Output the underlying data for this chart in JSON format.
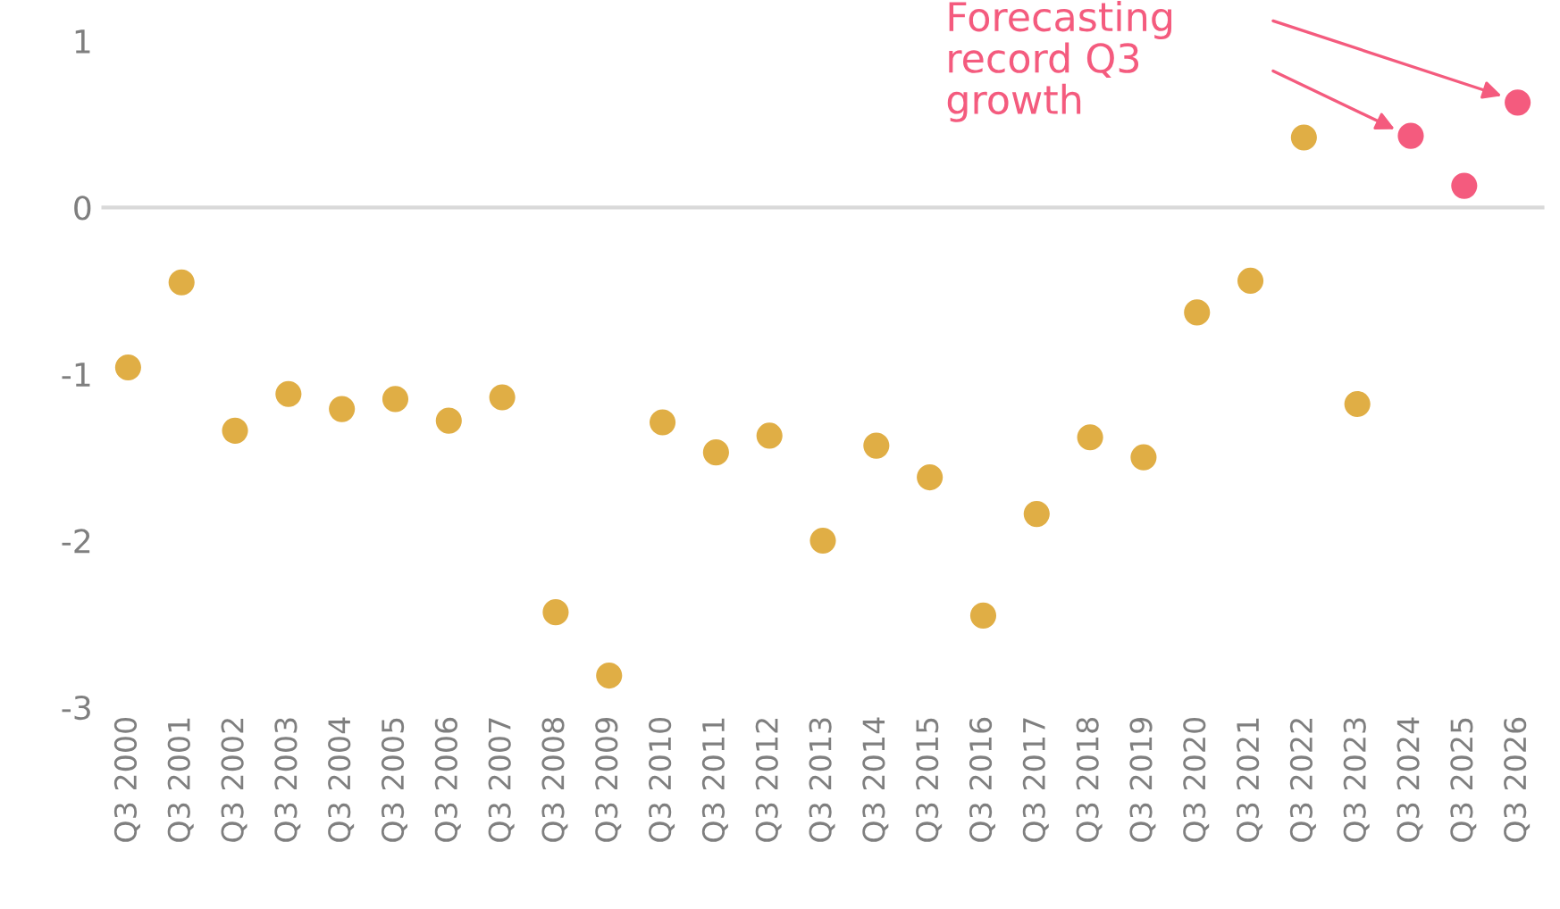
{
  "chart_data": {
    "type": "scatter",
    "categories": [
      "Q3 2000",
      "Q3 2001",
      "Q3 2002",
      "Q3 2003",
      "Q3 2004",
      "Q3 2005",
      "Q3 2006",
      "Q3 2007",
      "Q3 2008",
      "Q3 2009",
      "Q3 2010",
      "Q3 2011",
      "Q3 2012",
      "Q3 2013",
      "Q3 2014",
      "Q3 2015",
      "Q3 2016",
      "Q3 2017",
      "Q3 2018",
      "Q3 2019",
      "Q3 2020",
      "Q3 2021",
      "Q3 2022",
      "Q3 2023",
      "Q3 2024",
      "Q3 2025",
      "Q3 2026"
    ],
    "series": [
      {
        "color": "#e0ae45",
        "values": [
          -0.96,
          -0.45,
          -1.34,
          -1.12,
          -1.21,
          -1.15,
          -1.28,
          -1.14,
          -2.43,
          -2.81,
          -1.29,
          -1.47,
          -1.37,
          -2.0,
          -1.43,
          -1.62,
          -2.45,
          -1.84,
          -1.38,
          -1.5,
          -0.63,
          -0.44,
          0.42,
          -1.18,
          null,
          null,
          null
        ]
      },
      {
        "color": "#f45b7e",
        "values": [
          null,
          null,
          null,
          null,
          null,
          null,
          null,
          null,
          null,
          null,
          null,
          null,
          null,
          null,
          null,
          null,
          null,
          null,
          null,
          null,
          null,
          null,
          null,
          null,
          0.43,
          0.13,
          0.63
        ]
      }
    ],
    "ylim": [
      -3,
      1
    ],
    "yticks": [
      -3,
      -2,
      -1,
      0,
      1
    ],
    "ref_lines": [
      {
        "axis": "y",
        "value": 0,
        "color": "#d9d9d9"
      }
    ],
    "annotations": [
      "Forecasting\nrecord Q3\ngrowth"
    ],
    "grid": false,
    "legend": false,
    "marker": "circle"
  }
}
